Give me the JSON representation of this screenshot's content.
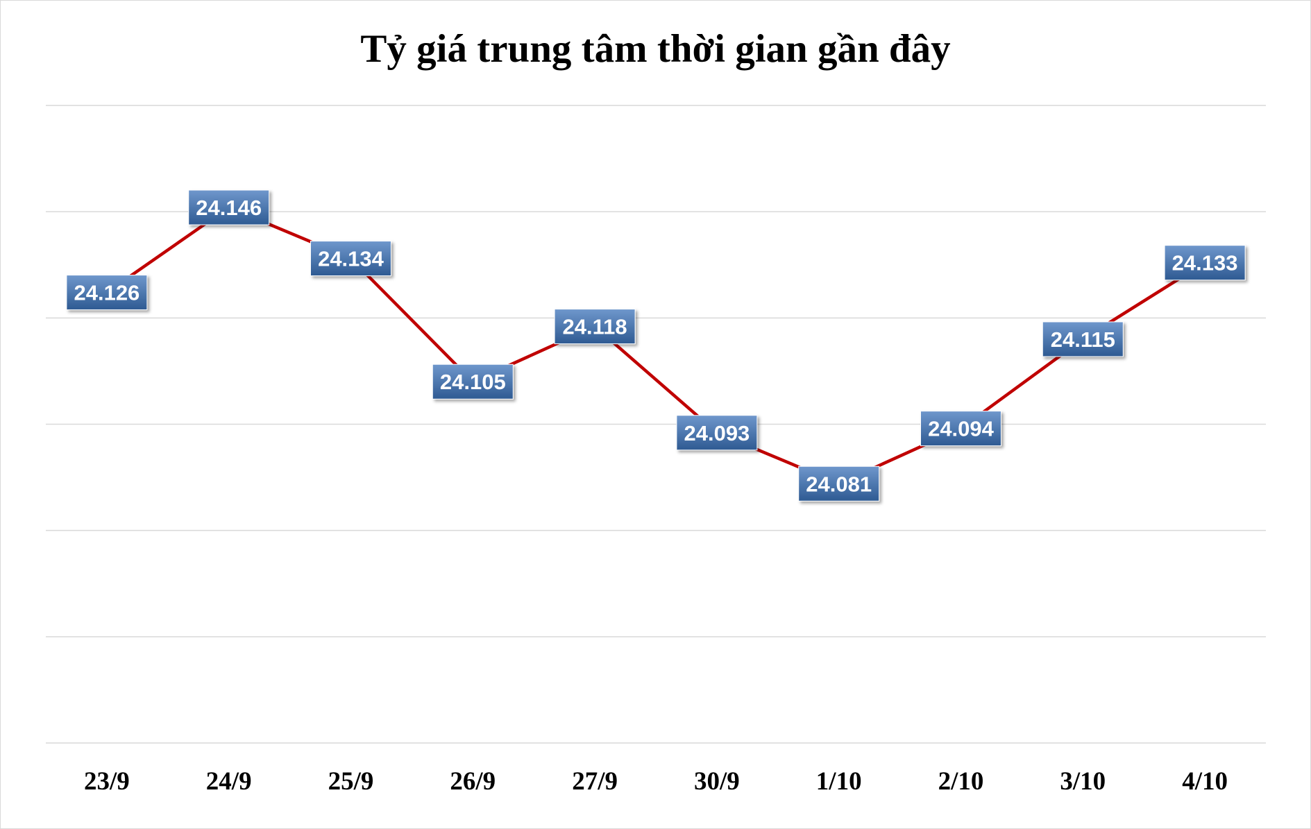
{
  "chart_data": {
    "type": "line",
    "title": "Tỷ giá trung tâm thời gian gần đây",
    "categories": [
      "23/9",
      "24/9",
      "25/9",
      "26/9",
      "27/9",
      "30/9",
      "1/10",
      "2/10",
      "3/10",
      "4/10"
    ],
    "values": [
      24126,
      24146,
      24134,
      24105,
      24118,
      24093,
      24081,
      24094,
      24115,
      24133
    ],
    "data_labels": [
      "24.126",
      "24.146",
      "24.134",
      "24.105",
      "24.118",
      "24.093",
      "24.081",
      "24.094",
      "24.115",
      "24.133"
    ],
    "ylim": [
      24020,
      24170
    ],
    "y_tick_step": 25,
    "y_tick_labels_visible": false,
    "grid": true,
    "legend": "none",
    "colors": {
      "line": "#c00000",
      "label_fill_top": "#6f97cc",
      "label_fill_bottom": "#2e5a92",
      "label_text": "#ffffff",
      "grid": "#d9d9d9",
      "axis_text": "#000000"
    }
  }
}
